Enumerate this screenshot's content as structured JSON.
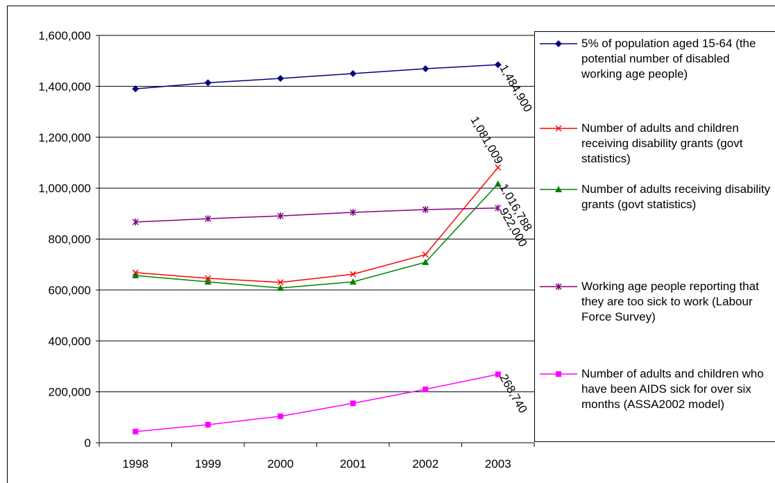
{
  "chart_data": {
    "type": "line",
    "categories": [
      "1998",
      "1999",
      "2000",
      "2001",
      "2002",
      "2003"
    ],
    "ylim": [
      0,
      1600000
    ],
    "yticks": [
      0,
      {
        "value": 200000,
        "label": "200,000"
      },
      {
        "value": 400000,
        "label": "400,000"
      },
      {
        "value": 600000,
        "label": "600,000"
      },
      {
        "value": 800000,
        "label": "800,000"
      },
      {
        "value": 1000000,
        "label": "1,000,000"
      },
      {
        "value": 1200000,
        "label": "1,200,000"
      },
      {
        "value": 1400000,
        "label": "1,400,000"
      },
      {
        "value": 1600000,
        "label": "1,600,000"
      }
    ],
    "grid": true,
    "legend": "right",
    "series": [
      {
        "name": "5% of population aged 15-64 (the potential number of disabled working age people)",
        "color": "#000080",
        "marker": "diamond",
        "values": [
          1390000,
          1414000,
          1431000,
          1450000,
          1469000,
          1484900
        ],
        "value_labels": [
          null,
          null,
          null,
          null,
          null,
          "1,484,900"
        ]
      },
      {
        "name": "Number of adults and children receiving disability grants (govt statistics)",
        "color": "#ff0000",
        "marker": "x",
        "values": [
          668000,
          646000,
          630000,
          662000,
          739000,
          1081009
        ],
        "value_labels": [
          null,
          null,
          null,
          null,
          null,
          "1,081,009"
        ]
      },
      {
        "name": "Number of adults receiving disability grants (govt statistics)",
        "color": "#008000",
        "marker": "triangle",
        "values": [
          657000,
          632000,
          608000,
          632000,
          709000,
          1016788
        ],
        "value_labels": [
          null,
          null,
          null,
          null,
          null,
          "1,016,788"
        ]
      },
      {
        "name": "Working age people reporting that they are too sick to work (Labour Force Survey)",
        "color": "#800080",
        "marker": "asterisk",
        "values": [
          867000,
          880000,
          891000,
          905000,
          916000,
          922000
        ],
        "value_labels": [
          null,
          null,
          null,
          null,
          null,
          "922,000"
        ]
      },
      {
        "name": "Number of adults and children who have been AIDS sick for over six months (ASSA2002 model)",
        "color": "#ff00ff",
        "marker": "square",
        "values": [
          44000,
          71000,
          104000,
          155000,
          210000,
          268740
        ],
        "value_labels": [
          null,
          null,
          null,
          null,
          null,
          "268,740"
        ]
      }
    ]
  }
}
